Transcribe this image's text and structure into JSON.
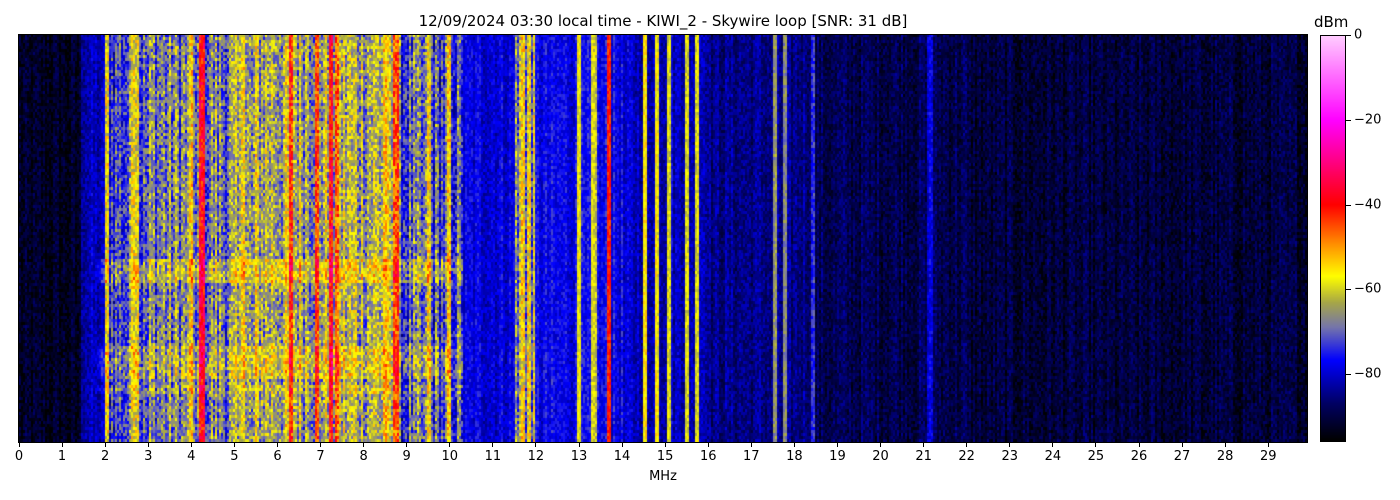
{
  "chart_data": {
    "type": "heatmap",
    "title": "12/09/2024 03:30 local time - KIWI_2 - Skywire loop [SNR: 31 dB]",
    "xlabel": "MHz",
    "ylabel": "",
    "xlim": [
      0,
      29.9
    ],
    "x_ticks": [
      0,
      1,
      2,
      3,
      4,
      5,
      6,
      7,
      8,
      9,
      10,
      11,
      12,
      13,
      14,
      15,
      16,
      17,
      18,
      19,
      20,
      21,
      22,
      23,
      24,
      25,
      26,
      27,
      28,
      29
    ],
    "colorbar": {
      "label": "dBm",
      "range": [
        -96,
        0
      ],
      "ticks": [
        0,
        -20,
        -40,
        -60,
        -80
      ],
      "colormap": [
        {
          "dbm": 0,
          "color": "#ffccff"
        },
        {
          "dbm": -20,
          "color": "#ff00ff"
        },
        {
          "dbm": -40,
          "color": "#ff0000"
        },
        {
          "dbm": -50,
          "color": "#ff9900"
        },
        {
          "dbm": -57,
          "color": "#ffff00"
        },
        {
          "dbm": -63,
          "color": "#aaaa44"
        },
        {
          "dbm": -69,
          "color": "#7777aa"
        },
        {
          "dbm": -77,
          "color": "#0000ff"
        },
        {
          "dbm": -87,
          "color": "#000066"
        },
        {
          "dbm": -96,
          "color": "#000000"
        }
      ]
    },
    "band_levels_dbm": [
      {
        "from": 0,
        "to": 1.45,
        "level": -93
      },
      {
        "from": 1.45,
        "to": 2.0,
        "level": -82
      },
      {
        "from": 2.0,
        "to": 3.0,
        "level": -72
      },
      {
        "from": 3.0,
        "to": 5.5,
        "level": -68
      },
      {
        "from": 5.5,
        "to": 8.8,
        "level": -63
      },
      {
        "from": 8.8,
        "to": 10.3,
        "level": -72
      },
      {
        "from": 10.3,
        "to": 11.5,
        "level": -79
      },
      {
        "from": 11.5,
        "to": 12.0,
        "level": -66
      },
      {
        "from": 12.0,
        "to": 14.0,
        "level": -78
      },
      {
        "from": 14.0,
        "to": 16.0,
        "level": -81
      },
      {
        "from": 16.0,
        "to": 18.5,
        "level": -85
      },
      {
        "from": 18.5,
        "to": 22.0,
        "level": -89
      },
      {
        "from": 22.0,
        "to": 29.9,
        "level": -91
      }
    ],
    "strong_signals": [
      {
        "mhz": 2.05,
        "dbm": -58
      },
      {
        "mhz": 2.65,
        "dbm": -56
      },
      {
        "mhz": 2.75,
        "dbm": -57
      },
      {
        "mhz": 4.25,
        "dbm": -40
      },
      {
        "mhz": 4.0,
        "dbm": -56
      },
      {
        "mhz": 5.2,
        "dbm": -56
      },
      {
        "mhz": 6.3,
        "dbm": -43
      },
      {
        "mhz": 6.9,
        "dbm": -45
      },
      {
        "mhz": 7.25,
        "dbm": -41
      },
      {
        "mhz": 7.4,
        "dbm": -46
      },
      {
        "mhz": 8.5,
        "dbm": -55
      },
      {
        "mhz": 8.75,
        "dbm": -45
      },
      {
        "mhz": 9.5,
        "dbm": -58
      },
      {
        "mhz": 10.0,
        "dbm": -57
      },
      {
        "mhz": 11.7,
        "dbm": -56
      },
      {
        "mhz": 11.85,
        "dbm": -57
      },
      {
        "mhz": 13.0,
        "dbm": -57
      },
      {
        "mhz": 13.35,
        "dbm": -60
      },
      {
        "mhz": 13.7,
        "dbm": -40
      },
      {
        "mhz": 14.55,
        "dbm": -56
      },
      {
        "mhz": 14.8,
        "dbm": -57
      },
      {
        "mhz": 15.1,
        "dbm": -60
      },
      {
        "mhz": 15.5,
        "dbm": -60
      },
      {
        "mhz": 15.75,
        "dbm": -58
      },
      {
        "mhz": 17.55,
        "dbm": -66
      },
      {
        "mhz": 17.8,
        "dbm": -68
      },
      {
        "mhz": 18.45,
        "dbm": -74
      },
      {
        "mhz": 21.15,
        "dbm": -78
      }
    ]
  }
}
